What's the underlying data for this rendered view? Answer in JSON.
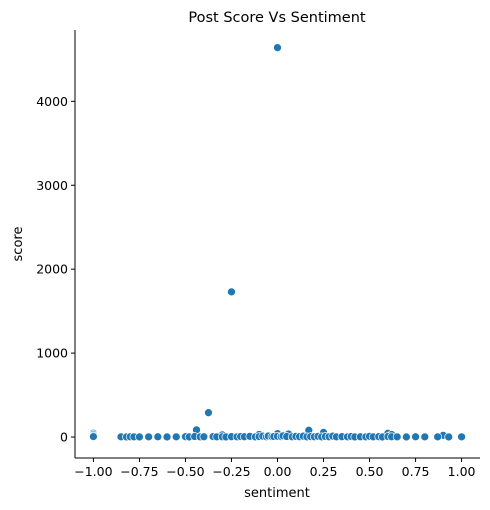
{
  "chart_data": {
    "type": "scatter",
    "title": "Post Score Vs Sentiment",
    "xlabel": "sentiment",
    "ylabel": "score",
    "xlim": [
      -1.1,
      1.1
    ],
    "ylim": [
      -250,
      4850
    ],
    "xticks": [
      -1.0,
      -0.75,
      -0.5,
      -0.25,
      0.0,
      0.25,
      0.5,
      0.75,
      1.0
    ],
    "xtick_labels": [
      "−1.00",
      "−0.75",
      "−0.50",
      "−0.25",
      "0.00",
      "0.25",
      "0.50",
      "0.75",
      "1.00"
    ],
    "yticks": [
      0,
      1000,
      2000,
      3000,
      4000
    ],
    "ytick_labels": [
      "0",
      "1000",
      "2000",
      "3000",
      "4000"
    ],
    "grid": false,
    "marker_color": "#1f77b4",
    "points": [
      [
        0.0,
        4640
      ],
      [
        -0.25,
        1730
      ],
      [
        -0.375,
        290
      ],
      [
        -0.44,
        85
      ],
      [
        0.17,
        80
      ],
      [
        0.25,
        55
      ],
      [
        0.6,
        45
      ],
      [
        -1.0,
        45
      ],
      [
        -1.0,
        30
      ],
      [
        -1.0,
        15
      ],
      [
        -1.0,
        5
      ],
      [
        0.0,
        40
      ],
      [
        0.06,
        35
      ],
      [
        -0.3,
        25
      ],
      [
        -0.1,
        30
      ],
      [
        0.62,
        30
      ],
      [
        0.9,
        20
      ],
      [
        -0.85,
        2
      ],
      [
        -0.82,
        1
      ],
      [
        -0.8,
        3
      ],
      [
        -0.78,
        2
      ],
      [
        -0.75,
        1
      ],
      [
        -0.7,
        2
      ],
      [
        -0.65,
        3
      ],
      [
        -0.6,
        1
      ],
      [
        -0.55,
        2
      ],
      [
        -0.5,
        4
      ],
      [
        -0.48,
        1
      ],
      [
        -0.45,
        6
      ],
      [
        -0.42,
        2
      ],
      [
        -0.4,
        3
      ],
      [
        -0.35,
        5
      ],
      [
        -0.33,
        2
      ],
      [
        -0.3,
        3
      ],
      [
        -0.28,
        1
      ],
      [
        -0.25,
        4
      ],
      [
        -0.22,
        2
      ],
      [
        -0.2,
        6
      ],
      [
        -0.18,
        3
      ],
      [
        -0.15,
        8
      ],
      [
        -0.12,
        2
      ],
      [
        -0.1,
        5
      ],
      [
        -0.08,
        10
      ],
      [
        -0.06,
        3
      ],
      [
        -0.05,
        12
      ],
      [
        -0.03,
        4
      ],
      [
        -0.02,
        6
      ],
      [
        0.0,
        8
      ],
      [
        0.02,
        5
      ],
      [
        0.03,
        14
      ],
      [
        0.05,
        6
      ],
      [
        0.08,
        3
      ],
      [
        0.1,
        7
      ],
      [
        0.12,
        4
      ],
      [
        0.14,
        10
      ],
      [
        0.16,
        2
      ],
      [
        0.18,
        5
      ],
      [
        0.2,
        3
      ],
      [
        0.22,
        8
      ],
      [
        0.24,
        2
      ],
      [
        0.26,
        6
      ],
      [
        0.28,
        3
      ],
      [
        0.3,
        10
      ],
      [
        0.32,
        2
      ],
      [
        0.35,
        4
      ],
      [
        0.38,
        2
      ],
      [
        0.4,
        6
      ],
      [
        0.42,
        1
      ],
      [
        0.45,
        3
      ],
      [
        0.48,
        2
      ],
      [
        0.5,
        8
      ],
      [
        0.52,
        2
      ],
      [
        0.55,
        4
      ],
      [
        0.57,
        1
      ],
      [
        0.6,
        6
      ],
      [
        0.62,
        3
      ],
      [
        0.65,
        2
      ],
      [
        0.7,
        1
      ],
      [
        0.75,
        3
      ],
      [
        0.8,
        2
      ],
      [
        0.87,
        2
      ],
      [
        0.93,
        1
      ],
      [
        1.0,
        2
      ]
    ]
  }
}
